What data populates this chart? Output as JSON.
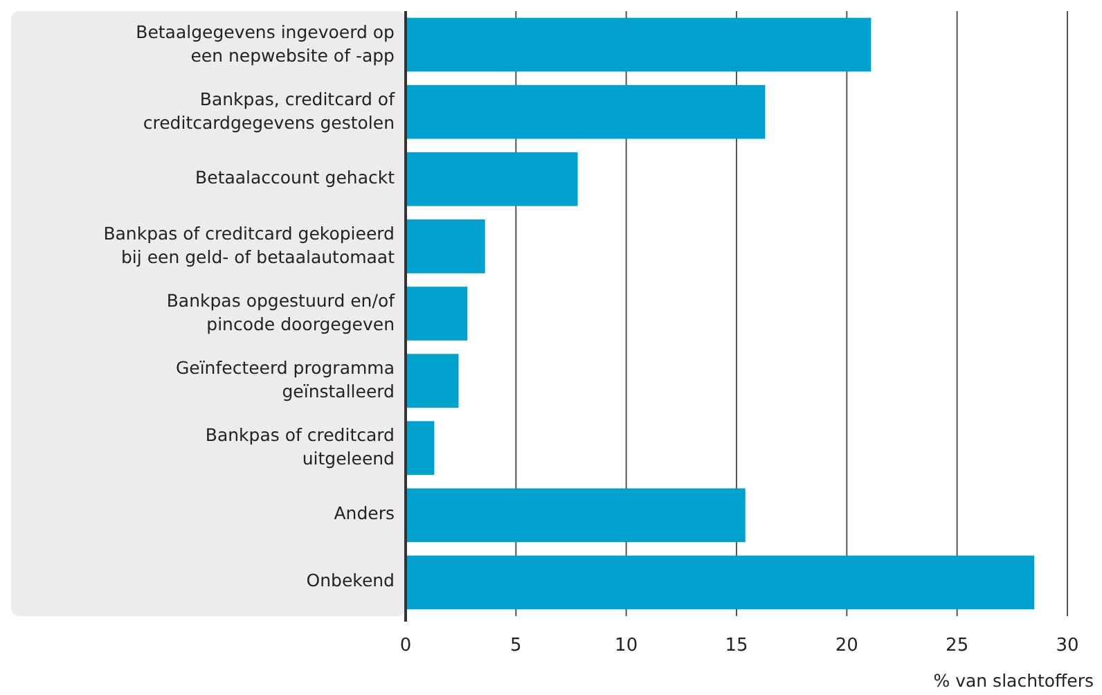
{
  "chart_data": {
    "type": "bar",
    "orientation": "horizontal",
    "categories": [
      "Betaalgegevens ingevoerd op\neen nepwebsite of -app",
      "Bankpas, creditcard of\ncreditcardgegevens gestolen",
      "Betaalaccount gehackt",
      "Bankpas of creditcard gekopieerd\nbij een geld- of betaalautomaat",
      "Bankpas opgestuurd en/of\npincode doorgegeven",
      "Geïnfecteerd programma\ngeïnstalleerd",
      "Bankpas of creditcard\nuitgeleend",
      "Anders",
      "Onbekend"
    ],
    "values": [
      21.1,
      16.3,
      7.8,
      3.6,
      2.8,
      2.4,
      1.3,
      15.4,
      28.5
    ],
    "color": "#00a1cd",
    "xlabel": "% van slachtoffers",
    "xlim": [
      0,
      30
    ],
    "xticks": [
      0,
      5,
      10,
      15,
      20,
      25,
      30
    ],
    "grid": "x"
  }
}
